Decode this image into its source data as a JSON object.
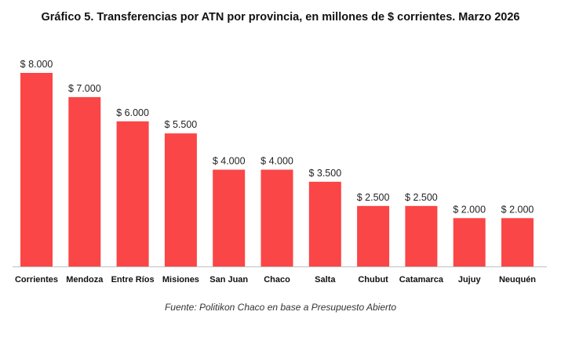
{
  "chart_data": {
    "type": "bar",
    "title": "Gráfico 5. Transferencias por ATN por provincia, en millones de $ corrientes. Marzo 2026",
    "categories": [
      "Corrientes",
      "Mendoza",
      "Entre Ríos",
      "Misiones",
      "San Juan",
      "Chaco",
      "Salta",
      "Chubut",
      "Catamarca",
      "Jujuy",
      "Neuquén"
    ],
    "values": [
      8000,
      7000,
      6000,
      5500,
      4000,
      4000,
      3500,
      2500,
      2500,
      2000,
      2000
    ],
    "data_labels": [
      "$ 8.000",
      "$ 7.000",
      "$ 6.000",
      "$ 5.500",
      "$ 4.000",
      "$ 4.000",
      "$ 3.500",
      "$ 2.500",
      "$ 2.500",
      "$ 2.000",
      "$ 2.000"
    ],
    "xlabel": "",
    "ylabel": "",
    "ylim": [
      0,
      8000
    ],
    "grid": false,
    "legend": "none",
    "bar_color": "#fa4646",
    "axis_color": "#bfbfbf"
  },
  "source": "Fuente: Politikon Chaco en base a Presupuesto Abierto"
}
